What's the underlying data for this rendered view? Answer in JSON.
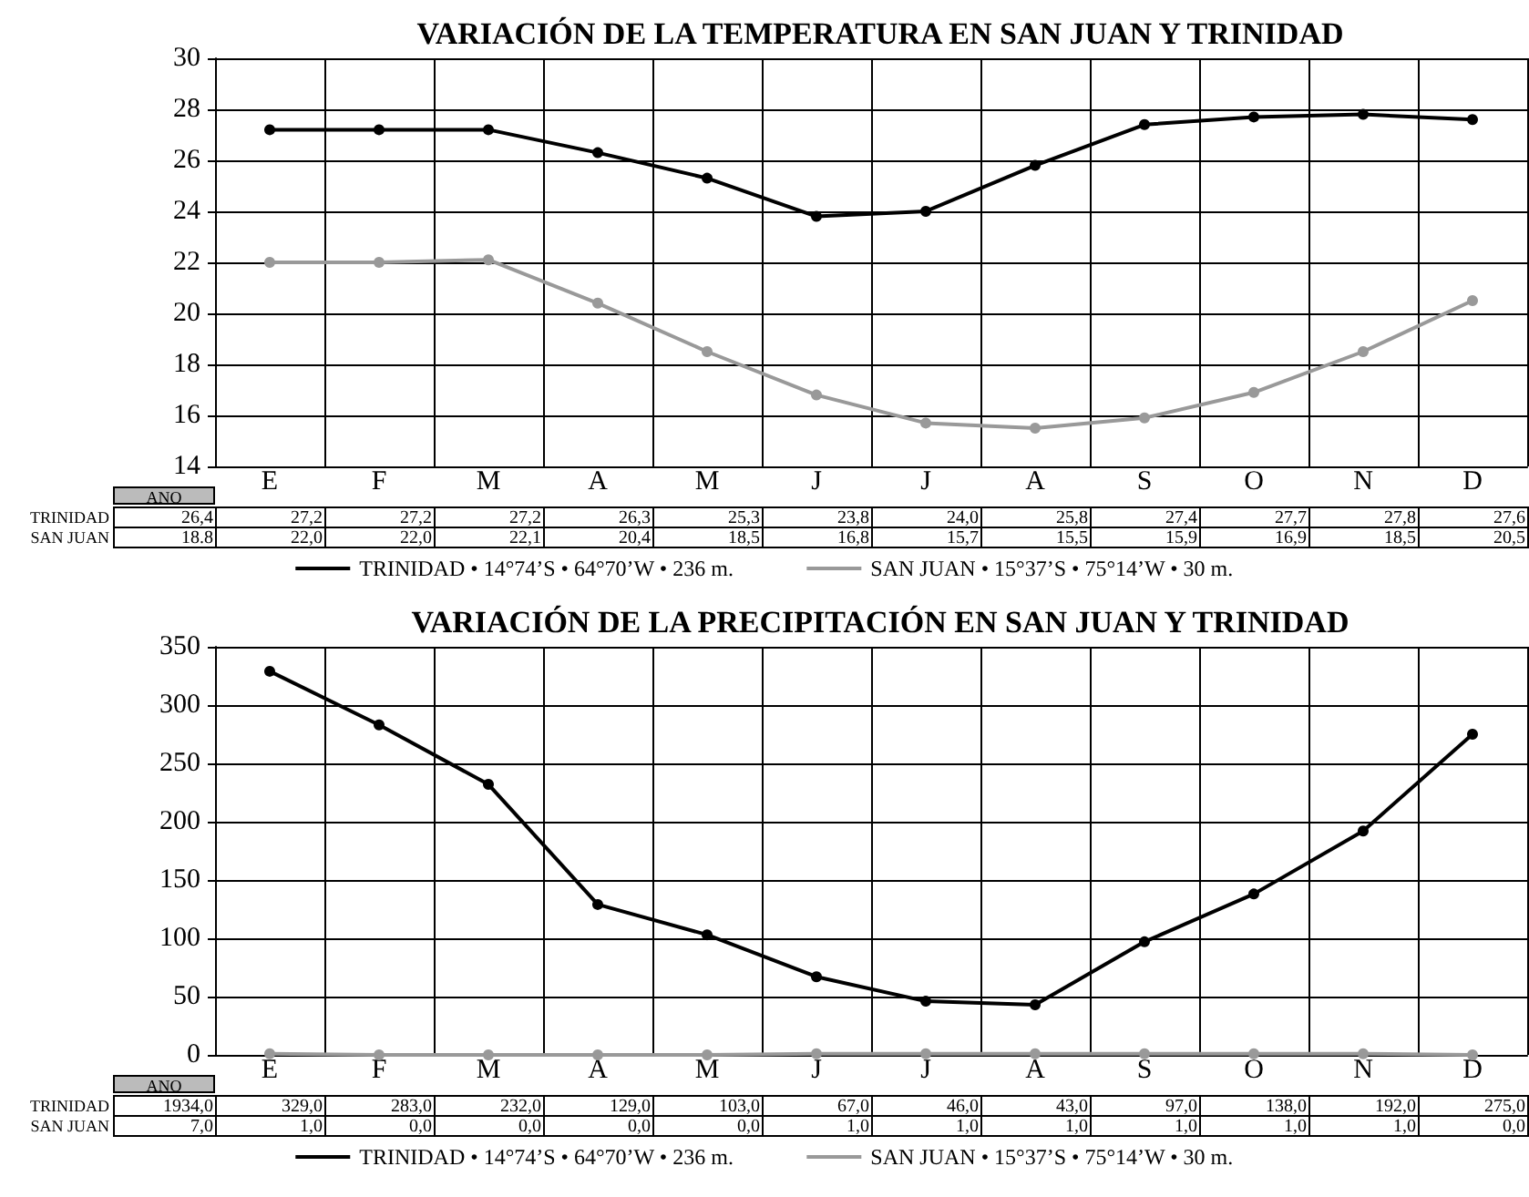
{
  "chart_data": [
    {
      "type": "line",
      "title": "VARIACIÓN DE LA TEMPERATURA EN SAN JUAN Y TRINIDAD",
      "categories": [
        "E",
        "F",
        "M",
        "A",
        "M",
        "J",
        "J",
        "A",
        "S",
        "O",
        "N",
        "D"
      ],
      "series": [
        {
          "name": "TRINIDAD • 14°74’S • 64°70’W • 236 m.",
          "color": "#000000",
          "values": [
            27.2,
            27.2,
            27.2,
            26.3,
            25.3,
            23.8,
            24.0,
            25.8,
            27.4,
            27.7,
            27.8,
            27.6
          ],
          "value_labels": [
            "27,2",
            "27,2",
            "27,2",
            "26,3",
            "25,3",
            "23,8",
            "24,0",
            "25,8",
            "27,4",
            "27,7",
            "27,8",
            "27,6"
          ]
        },
        {
          "name": "SAN JUAN • 15°37’S • 75°14’W • 30 m.",
          "color": "#999999",
          "values": [
            22.0,
            22.0,
            22.1,
            20.4,
            18.5,
            16.8,
            15.7,
            15.5,
            15.9,
            16.9,
            18.5,
            20.5
          ],
          "value_labels": [
            "22,0",
            "22,0",
            "22,1",
            "20,4",
            "18,5",
            "16,8",
            "15,7",
            "15,5",
            "15,9",
            "16,9",
            "18,5",
            "20,5"
          ]
        }
      ],
      "ylim": [
        14,
        30
      ],
      "yticks": [
        14,
        16,
        18,
        20,
        22,
        24,
        26,
        28,
        30
      ],
      "grid": true,
      "legend": "bottom",
      "marker": "circle",
      "line_style": "solid",
      "annotations": [
        "ANO",
        "TRINIDAD",
        "26,4",
        "SAN JUAN",
        "18.8"
      ]
    },
    {
      "type": "line",
      "title": "VARIACIÓN DE LA PRECIPITACIÓN EN SAN JUAN Y TRINIDAD",
      "categories": [
        "E",
        "F",
        "M",
        "A",
        "M",
        "J",
        "J",
        "A",
        "S",
        "O",
        "N",
        "D"
      ],
      "series": [
        {
          "name": "TRINIDAD • 14°74’S • 64°70’W • 236 m.",
          "color": "#000000",
          "values": [
            329.0,
            283.0,
            232.0,
            129.0,
            103.0,
            67.0,
            46.0,
            43.0,
            97.0,
            138.0,
            192.0,
            275.0
          ],
          "value_labels": [
            "329,0",
            "283,0",
            "232,0",
            "129,0",
            "103,0",
            "67,0",
            "46,0",
            "43,0",
            "97,0",
            "138,0",
            "192,0",
            "275,0"
          ]
        },
        {
          "name": "SAN JUAN • 15°37’S • 75°14’W • 30 m.",
          "color": "#999999",
          "values": [
            1.0,
            0.0,
            0.0,
            0.0,
            0.0,
            1.0,
            1.0,
            1.0,
            1.0,
            1.0,
            1.0,
            0.0
          ],
          "value_labels": [
            "1,0",
            "0,0",
            "0,0",
            "0,0",
            "0,0",
            "1,0",
            "1,0",
            "1,0",
            "1,0",
            "1,0",
            "1,0",
            "0,0"
          ]
        }
      ],
      "ylim": [
        0,
        350
      ],
      "yticks": [
        0,
        50,
        100,
        150,
        200,
        250,
        300,
        350
      ],
      "grid": true,
      "legend": "bottom",
      "marker": "circle",
      "line_style": "solid",
      "annotations": [
        "ANO",
        "TRINIDAD",
        "1934,0",
        "SAN JUAN",
        "7,0"
      ]
    }
  ]
}
